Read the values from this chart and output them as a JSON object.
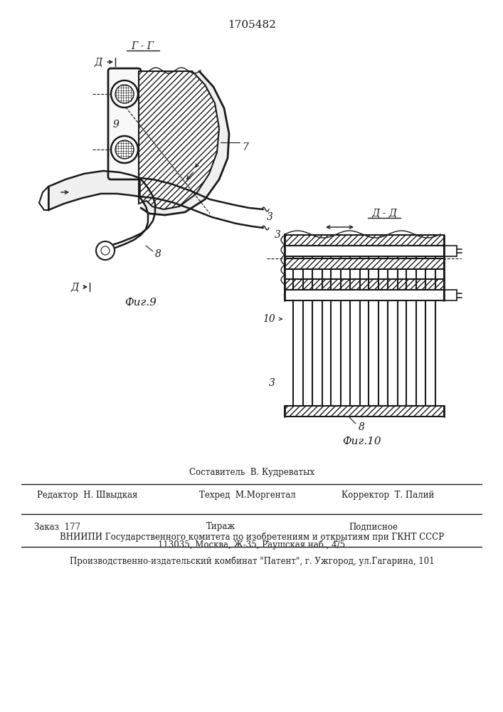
{
  "title": "1705482",
  "fig9_label": "Фиг.9",
  "fig10_label": "Фиг.10",
  "section_gg": "Г - Г",
  "section_dd": "Д - Д",
  "label_d": "Д",
  "num_7": "7",
  "num_8": "8",
  "num_9": "9",
  "num_3": "3",
  "num_10": "10",
  "footer_composer": "Составитель  В. Кудреватых",
  "footer_editor": "Редактор  Н. Швыдкая",
  "footer_tech": "Техред  М.Моргентал",
  "footer_corrector": "Корректор  Т. Палий",
  "footer_order": "Заказ  177",
  "footer_print": "Тираж",
  "footer_sign": "Подписное",
  "footer_vniipи": "ВНИИПИ Государственного комитета по изобретениям и открытиям при ГКНТ СССР",
  "footer_addr": "113035, Москва, Ж-35, Раушская наб., 4/5",
  "footer_pub": "Производственно-издательский комбинат \"Патент\", г. Ужгород, ул.Гагарина, 101",
  "bg": "#ffffff",
  "lc": "#1a1a1a"
}
